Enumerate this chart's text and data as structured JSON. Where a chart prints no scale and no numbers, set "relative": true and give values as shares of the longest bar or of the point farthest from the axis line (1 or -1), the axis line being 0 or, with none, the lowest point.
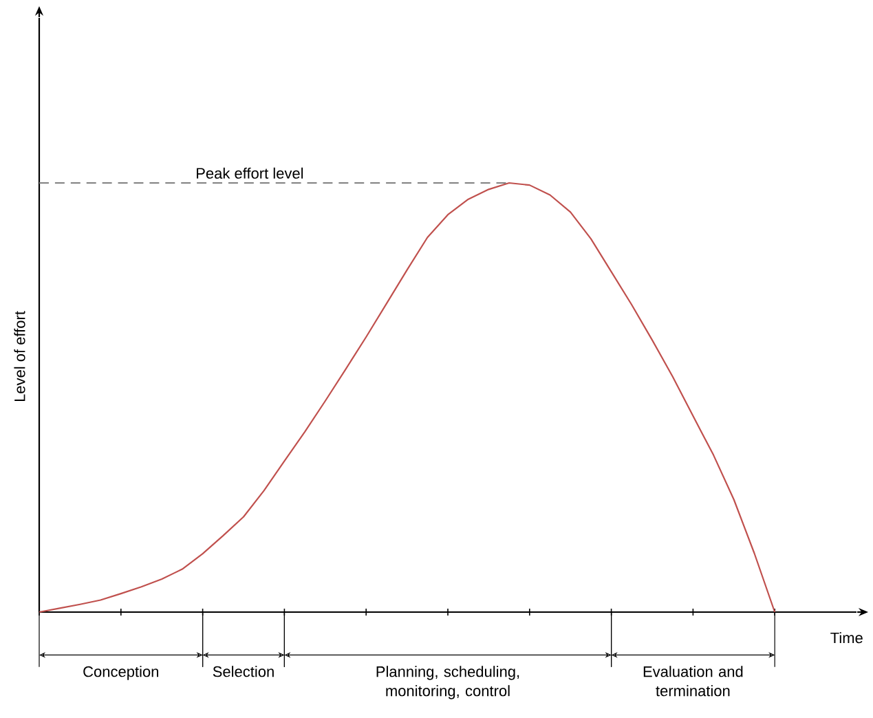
{
  "chart_data": {
    "type": "line",
    "xlabel": "Time",
    "ylabel": "Level of effort",
    "relative": true,
    "categories": [
      null,
      null,
      null,
      null,
      null,
      null,
      null,
      null,
      null,
      null,
      null,
      null,
      null,
      null,
      null,
      null,
      null,
      null,
      null,
      null,
      null,
      null,
      null,
      null,
      null,
      null,
      null,
      null,
      null,
      null,
      null,
      null,
      null,
      null,
      null,
      null,
      null
    ],
    "series": [
      {
        "color": "#c0504d",
        "values": [
          0,
          0.009,
          0.018,
          0.028,
          0.043,
          0.059,
          0.077,
          0.1,
          0.136,
          0.178,
          0.222,
          0.283,
          0.352,
          0.42,
          0.492,
          0.566,
          0.641,
          0.719,
          0.797,
          0.873,
          0.926,
          0.962,
          0.985,
          1,
          0.995,
          0.972,
          0.932,
          0.87,
          0.793,
          0.716,
          0.634,
          0.549,
          0.457,
          0.366,
          0.262,
          0.137,
          0
        ]
      }
    ],
    "ref_lines": [
      {
        "axis": "y",
        "value": 1,
        "label": "Peak effort level",
        "color": "#808080",
        "line_style": "dashed"
      }
    ],
    "annotations": [
      "Conception",
      "Selection",
      "Planning, scheduling, monitoring, control",
      "Evaluation and termination"
    ]
  }
}
